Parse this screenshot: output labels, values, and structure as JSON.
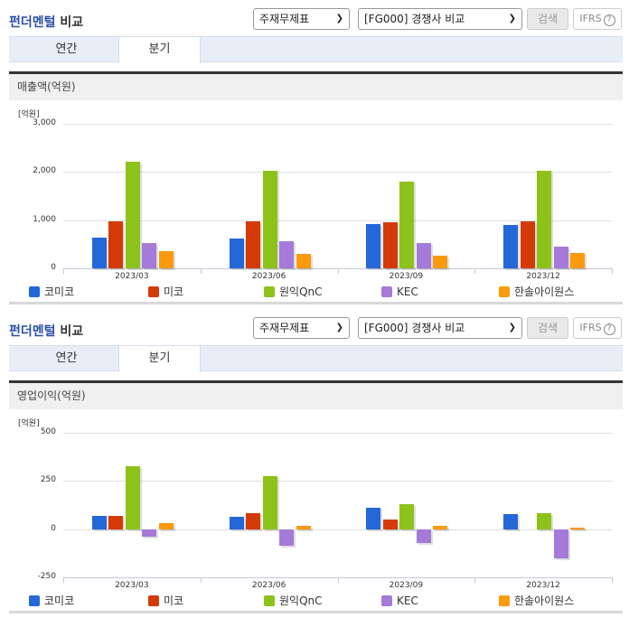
{
  "sections": [
    {
      "title_blue": "펀더멘털",
      "title_dark": "비교",
      "select_statement": "주재무제표",
      "select_group": "[FG000] 경쟁사 비교",
      "search_label": "검색",
      "ifrs_label": "IFRS",
      "help_glyph": "?",
      "tabs": [
        {
          "label": "연간",
          "active": false
        },
        {
          "label": "분기",
          "active": true
        }
      ],
      "metric_title": "매출액(억원)",
      "unit": "[억원]"
    },
    {
      "title_blue": "펀더멘털",
      "title_dark": "비교",
      "select_statement": "주재무제표",
      "select_group": "[FG000] 경쟁사 비교",
      "search_label": "검색",
      "ifrs_label": "IFRS",
      "help_glyph": "?",
      "tabs": [
        {
          "label": "연간",
          "active": false
        },
        {
          "label": "분기",
          "active": true
        }
      ],
      "metric_title": "영업이익(억원)",
      "unit": "[억원]"
    }
  ],
  "colors": {
    "코미코": "#2467d8",
    "미코": "#d43a08",
    "원익QnC": "#8dc21a",
    "KEC": "#a57ad8",
    "한솔아이원스": "#fa9a0c"
  },
  "chart_data": [
    {
      "type": "bar",
      "title": "매출액(억원)",
      "ylabel": "[억원]",
      "xlabel": "",
      "categories": [
        "2023/03",
        "2023/06",
        "2023/09",
        "2023/12"
      ],
      "yticks": [
        0,
        1000,
        2000,
        3000
      ],
      "ytick_labels": [
        "0",
        "1,000",
        "2,000",
        "3,000"
      ],
      "ylim": [
        0,
        3000
      ],
      "grid": true,
      "legend_position": "bottom",
      "series": [
        {
          "name": "코미코",
          "values": [
            640,
            620,
            920,
            900
          ]
        },
        {
          "name": "미코",
          "values": [
            975,
            975,
            955,
            975
          ]
        },
        {
          "name": "원익QnC",
          "values": [
            2210,
            2020,
            1800,
            2020
          ]
        },
        {
          "name": "KEC",
          "values": [
            525,
            560,
            525,
            450
          ]
        },
        {
          "name": "한솔아이원스",
          "values": [
            355,
            300,
            265,
            320
          ]
        }
      ]
    },
    {
      "type": "bar",
      "title": "영업이익(억원)",
      "ylabel": "[억원]",
      "xlabel": "",
      "categories": [
        "2023/03",
        "2023/06",
        "2023/09",
        "2023/12"
      ],
      "yticks": [
        -250,
        0,
        250,
        500
      ],
      "ytick_labels": [
        "-250",
        "0",
        "250",
        "500"
      ],
      "ylim": [
        -250,
        500
      ],
      "grid": true,
      "legend_position": "bottom",
      "series": [
        {
          "name": "코미코",
          "values": [
            70,
            65,
            112,
            80
          ]
        },
        {
          "name": "미코",
          "values": [
            70,
            85,
            52,
            0
          ]
        },
        {
          "name": "원익QnC",
          "values": [
            327,
            277,
            132,
            85
          ]
        },
        {
          "name": "KEC",
          "values": [
            -37,
            -85,
            -70,
            -150
          ]
        },
        {
          "name": "한솔아이원스",
          "values": [
            33,
            18,
            15,
            10
          ]
        }
      ]
    }
  ]
}
